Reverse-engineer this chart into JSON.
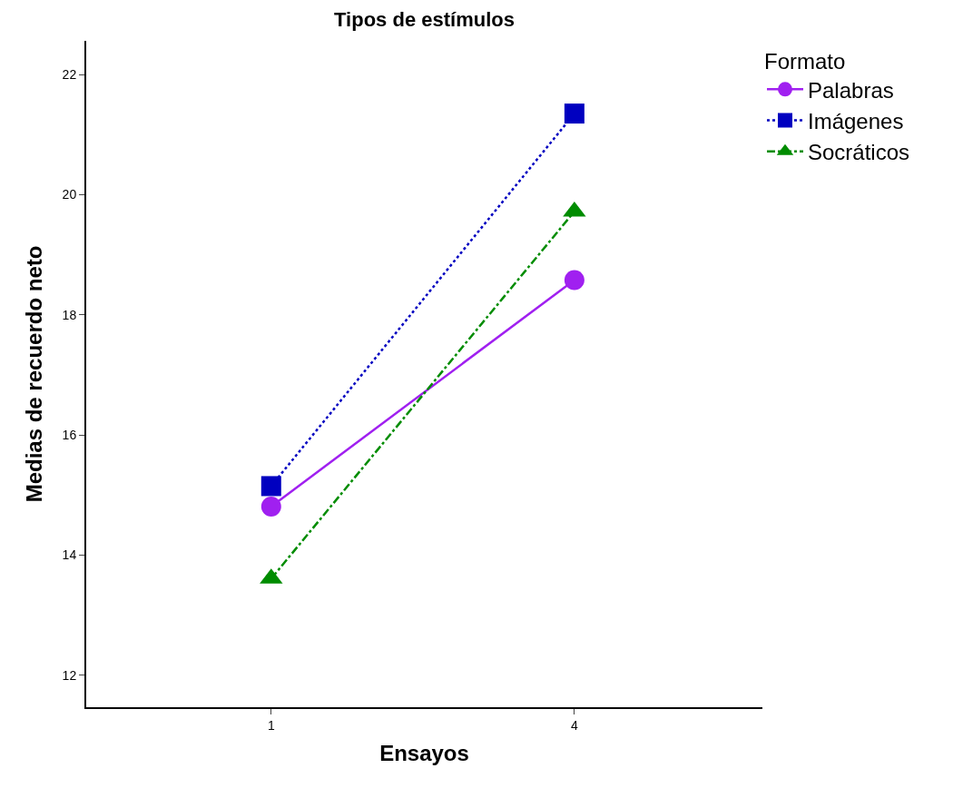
{
  "chart_data": {
    "type": "line",
    "title": "Tipos de estímulos",
    "xlabel": "Ensayos",
    "ylabel": "Medias de recuerdo neto",
    "legend_title": "Formato",
    "categories": [
      "1",
      "4"
    ],
    "series": [
      {
        "name": "Palabras",
        "color": "#a020f0",
        "values": [
          14.81,
          18.58
        ],
        "marker": "circle",
        "line_style": "solid"
      },
      {
        "name": "Imágenes",
        "color": "#0000c0",
        "values": [
          15.15,
          21.35
        ],
        "marker": "square",
        "line_style": "dotted"
      },
      {
        "name": "Socráticos",
        "color": "#008c00",
        "values": [
          13.61,
          19.72
        ],
        "marker": "triangle",
        "line_style": "dashdot"
      }
    ],
    "ylim": [
      11.47,
      22.56
    ],
    "yticks": [
      12,
      14,
      16,
      18,
      20,
      22
    ],
    "legend": "top right"
  }
}
